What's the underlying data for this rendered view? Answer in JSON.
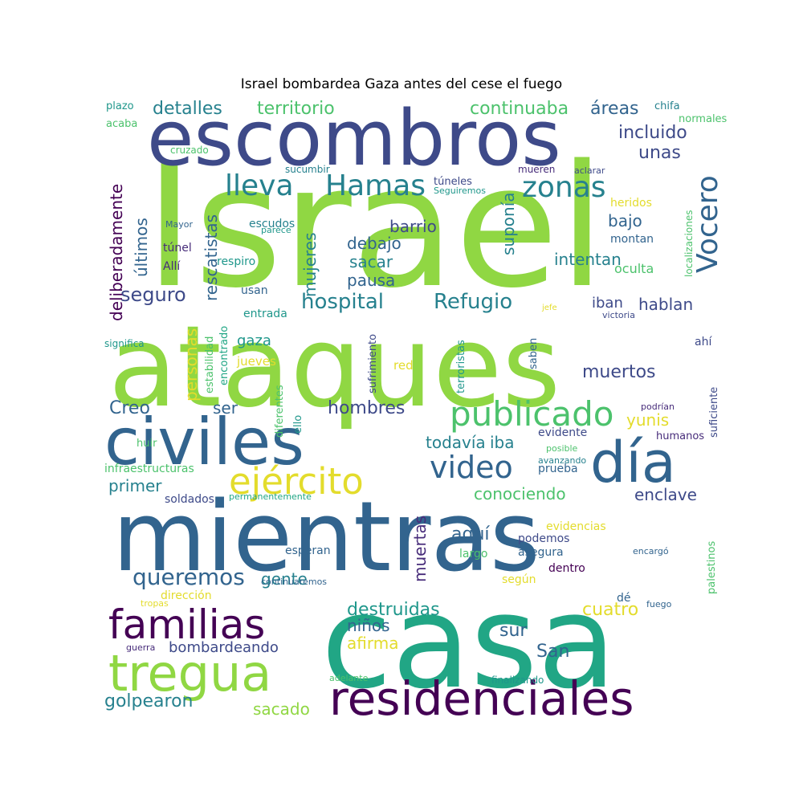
{
  "title": "Israel bombardea Gaza antes del cese el fuego",
  "palette": {
    "yellow": "#e3dc2c",
    "lime": "#90d743",
    "green": "#4cc26c",
    "teal": "#21a685",
    "cyan": "#1f978b",
    "blueteal": "#26818e",
    "blue": "#32648e",
    "indigo": "#3e4a89",
    "violet": "#472c7a",
    "purple": "#440154"
  },
  "words": [
    {
      "text": "Israel",
      "color": "lime"
    },
    {
      "text": "ataques",
      "color": "lime"
    },
    {
      "text": "escombros",
      "color": "indigo"
    },
    {
      "text": "mientras",
      "color": "blue"
    },
    {
      "text": "casa",
      "color": "teal"
    },
    {
      "text": "civiles",
      "color": "blue"
    },
    {
      "text": "día",
      "color": "blue"
    },
    {
      "text": "familias",
      "color": "purple"
    },
    {
      "text": "tregua",
      "color": "lime"
    },
    {
      "text": "residenciales",
      "color": "purple"
    },
    {
      "text": "publicado",
      "color": "green"
    },
    {
      "text": "ejército",
      "color": "yellow"
    },
    {
      "text": "video",
      "color": "blue"
    },
    {
      "text": "Hamas",
      "color": "blueteal"
    },
    {
      "text": "lleva",
      "color": "blueteal"
    },
    {
      "text": "zonas",
      "color": "blueteal"
    },
    {
      "text": "Vocero",
      "color": "blue"
    },
    {
      "text": "hospital",
      "color": "blueteal"
    },
    {
      "text": "Refugio",
      "color": "blueteal"
    },
    {
      "text": "queremos",
      "color": "blue"
    },
    {
      "text": "detalles",
      "color": "blueteal"
    },
    {
      "text": "territorio",
      "color": "green"
    },
    {
      "text": "continuaba",
      "color": "green"
    },
    {
      "text": "áreas",
      "color": "blue"
    },
    {
      "text": "incluido",
      "color": "indigo"
    },
    {
      "text": "unas",
      "color": "indigo"
    },
    {
      "text": "chifa",
      "color": "blueteal"
    },
    {
      "text": "normales",
      "color": "green"
    },
    {
      "text": "plazo",
      "color": "cyan"
    },
    {
      "text": "acaba",
      "color": "green"
    },
    {
      "text": "cruzado",
      "color": "green"
    },
    {
      "text": "sucumbir",
      "color": "blueteal"
    },
    {
      "text": "túneles",
      "color": "indigo"
    },
    {
      "text": "Seguiremos",
      "color": "cyan"
    },
    {
      "text": "mueren",
      "color": "violet"
    },
    {
      "text": "aclarar",
      "color": "indigo"
    },
    {
      "text": "heridos",
      "color": "yellow"
    },
    {
      "text": "Mayor",
      "color": "blue"
    },
    {
      "text": "escudos",
      "color": "blueteal"
    },
    {
      "text": "parece",
      "color": "cyan"
    },
    {
      "text": "barrio",
      "color": "indigo"
    },
    {
      "text": "bajo",
      "color": "blue"
    },
    {
      "text": "montan",
      "color": "blue"
    },
    {
      "text": "túnel",
      "color": "violet"
    },
    {
      "text": "respiro",
      "color": "cyan"
    },
    {
      "text": "debajo",
      "color": "blue"
    },
    {
      "text": "sacar",
      "color": "blueteal"
    },
    {
      "text": "intentan",
      "color": "blueteal"
    },
    {
      "text": "Allí",
      "color": "violet"
    },
    {
      "text": "oculta",
      "color": "green"
    },
    {
      "text": "pausa",
      "color": "blue"
    },
    {
      "text": "seguro",
      "color": "indigo"
    },
    {
      "text": "usan",
      "color": "blue"
    },
    {
      "text": "entrada",
      "color": "cyan"
    },
    {
      "text": "iban",
      "color": "indigo"
    },
    {
      "text": "hablan",
      "color": "indigo"
    },
    {
      "text": "jefe",
      "color": "yellow"
    },
    {
      "text": "victoria",
      "color": "indigo"
    },
    {
      "text": "gaza",
      "color": "cyan"
    },
    {
      "text": "significa",
      "color": "cyan"
    },
    {
      "text": "jueves",
      "color": "yellow"
    },
    {
      "text": "red",
      "color": "yellow"
    },
    {
      "text": "ahí",
      "color": "indigo"
    },
    {
      "text": "muertos",
      "color": "indigo"
    },
    {
      "text": "ser",
      "color": "blue"
    },
    {
      "text": "hombres",
      "color": "indigo"
    },
    {
      "text": "Creo",
      "color": "blue"
    },
    {
      "text": "yunis",
      "color": "yellow"
    },
    {
      "text": "podrían",
      "color": "violet"
    },
    {
      "text": "todavía",
      "color": "blueteal"
    },
    {
      "text": "iba",
      "color": "blueteal"
    },
    {
      "text": "evidente",
      "color": "indigo"
    },
    {
      "text": "humanos",
      "color": "violet"
    },
    {
      "text": "huir",
      "color": "green"
    },
    {
      "text": "posible",
      "color": "green"
    },
    {
      "text": "avanzando",
      "color": "blueteal"
    },
    {
      "text": "infraestructuras",
      "color": "green"
    },
    {
      "text": "prueba",
      "color": "blue"
    },
    {
      "text": "primer",
      "color": "blueteal"
    },
    {
      "text": "enclave",
      "color": "indigo"
    },
    {
      "text": "conociendo",
      "color": "green"
    },
    {
      "text": "soldados",
      "color": "indigo"
    },
    {
      "text": "permanentemente",
      "color": "teal"
    },
    {
      "text": "aquí",
      "color": "blue"
    },
    {
      "text": "evidencias",
      "color": "yellow"
    },
    {
      "text": "podemos",
      "color": "indigo"
    },
    {
      "text": "esperan",
      "color": "blue"
    },
    {
      "text": "asegura",
      "color": "blue"
    },
    {
      "text": "largo",
      "color": "green"
    },
    {
      "text": "dentro",
      "color": "purple"
    },
    {
      "text": "encargó",
      "color": "blue"
    },
    {
      "text": "gente",
      "color": "blueteal"
    },
    {
      "text": "continuaremos",
      "color": "blue"
    },
    {
      "text": "según",
      "color": "yellow"
    },
    {
      "text": "dirección",
      "color": "yellow"
    },
    {
      "text": "tropas",
      "color": "yellow"
    },
    {
      "text": "dé",
      "color": "blue"
    },
    {
      "text": "fuego",
      "color": "blue"
    },
    {
      "text": "destruidas",
      "color": "cyan"
    },
    {
      "text": "cuatro",
      "color": "yellow"
    },
    {
      "text": "niños",
      "color": "blue"
    },
    {
      "text": "sur",
      "color": "blue"
    },
    {
      "text": "afirma",
      "color": "yellow"
    },
    {
      "text": "San",
      "color": "blue"
    },
    {
      "text": "bombardeando",
      "color": "indigo"
    },
    {
      "text": "guerra",
      "color": "violet"
    },
    {
      "text": "adelante",
      "color": "green"
    },
    {
      "text": "finalizando",
      "color": "cyan"
    },
    {
      "text": "golpearon",
      "color": "blueteal"
    },
    {
      "text": "sacado",
      "color": "lime"
    },
    {
      "text": "deliberadamente",
      "color": "purple"
    },
    {
      "text": "últimos",
      "color": "blue"
    },
    {
      "text": "rescatistas",
      "color": "blue"
    },
    {
      "text": "mujeres",
      "color": "blueteal"
    },
    {
      "text": "suponía",
      "color": "blueteal"
    },
    {
      "text": "personas",
      "color": "yellow"
    },
    {
      "text": "estabilidad",
      "color": "green"
    },
    {
      "text": "encontrado",
      "color": "teal"
    },
    {
      "text": "diferentes",
      "color": "green"
    },
    {
      "text": "ello",
      "color": "cyan"
    },
    {
      "text": "sufrimiento",
      "color": "indigo"
    },
    {
      "text": "terroristas",
      "color": "cyan"
    },
    {
      "text": "saben",
      "color": "blue"
    },
    {
      "text": "muertas",
      "color": "violet"
    },
    {
      "text": "localizaciones",
      "color": "green"
    },
    {
      "text": "suficiente",
      "color": "indigo"
    },
    {
      "text": "palestinos",
      "color": "green"
    }
  ]
}
